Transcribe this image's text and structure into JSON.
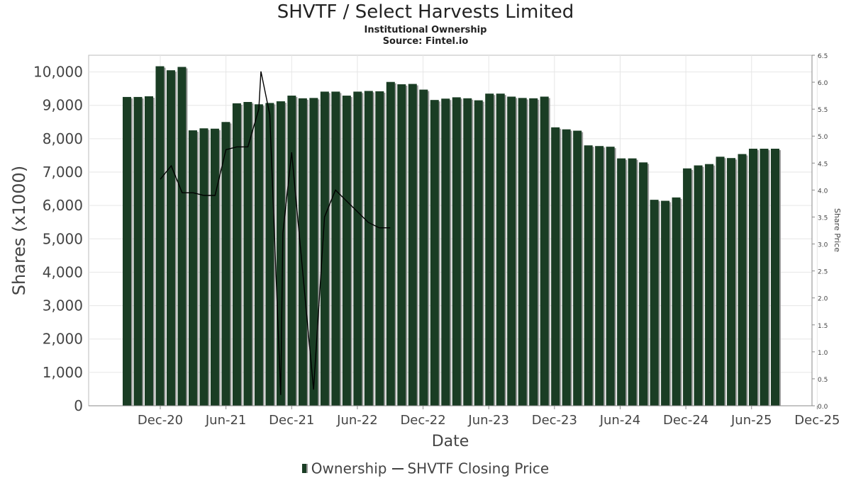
{
  "chart_data": {
    "type": "bar",
    "title": "SHVTF / Select Harvests Limited",
    "subtitle": "Institutional Ownership",
    "source": "Source: Fintel.io",
    "xlabel": "Date",
    "ylabel": "Shares (x1000)",
    "y2label": "Share Price",
    "ylim": [
      0,
      10500
    ],
    "y2lim": [
      0,
      6.5
    ],
    "yticks": [
      "0",
      "1,000",
      "2,000",
      "3,000",
      "4,000",
      "5,000",
      "6,000",
      "7,000",
      "8,000",
      "9,000",
      "10,000"
    ],
    "y2ticks": [
      "0.0",
      "0.5",
      "1.0",
      "1.5",
      "2.0",
      "2.5",
      "3.0",
      "3.5",
      "4.0",
      "4.5",
      "5.0",
      "5.5",
      "6.0",
      "6.5"
    ],
    "xticks": [
      "Dec-20",
      "Jun-21",
      "Dec-21",
      "Jun-22",
      "Dec-22",
      "Jun-23",
      "Dec-23",
      "Jun-24",
      "Dec-24",
      "Jun-25",
      "Dec-25"
    ],
    "series": [
      {
        "name": "Ownership",
        "type": "bar",
        "color": "#1a3d24",
        "values": [
          9250,
          9250,
          9270,
          10170,
          10050,
          10150,
          8250,
          8310,
          8300,
          8500,
          9060,
          9100,
          9030,
          9070,
          9120,
          9290,
          9210,
          9220,
          9410,
          9410,
          9290,
          9410,
          9430,
          9420,
          9700,
          9630,
          9640,
          9470,
          9160,
          9200,
          9240,
          9210,
          9150,
          9350,
          9350,
          9260,
          9220,
          9210,
          9260,
          8340,
          8280,
          8240,
          7800,
          7780,
          7760,
          7410,
          7410,
          7290,
          6170,
          6140,
          6240,
          7110,
          7200,
          7240,
          7460,
          7420,
          7540,
          7700,
          7700,
          7700
        ]
      },
      {
        "name": "SHVTF Closing Price",
        "type": "line",
        "color": "#000000",
        "points": [
          [
            "Dec-20",
            4.2
          ],
          [
            "Jan-21",
            4.45
          ],
          [
            "Feb-21",
            3.95
          ],
          [
            "Mar-21",
            3.95
          ],
          [
            "Apr-21",
            3.9
          ],
          [
            "May-21",
            3.9
          ],
          [
            "Jun-21",
            4.75
          ],
          [
            "Jul-21",
            4.8
          ],
          [
            "Aug-21",
            4.8
          ],
          [
            "Sep-21",
            5.5
          ],
          [
            "Sep-21",
            6.2
          ],
          [
            "Oct-21",
            5.4
          ],
          [
            "Nov-21",
            0.2
          ],
          [
            "Nov-21",
            3.2
          ],
          [
            "Dec-21",
            4.7
          ],
          [
            "Jan-22",
            2.5
          ],
          [
            "Feb-22",
            0.3
          ],
          [
            "Mar-22",
            3.5
          ],
          [
            "Apr-22",
            4.0
          ],
          [
            "May-22",
            3.8
          ],
          [
            "Jun-22",
            3.6
          ],
          [
            "Jul-22",
            3.4
          ],
          [
            "Aug-22",
            3.3
          ],
          [
            "Sep-22",
            3.3
          ]
        ]
      }
    ],
    "grid": true,
    "legend_position": "bottom"
  }
}
